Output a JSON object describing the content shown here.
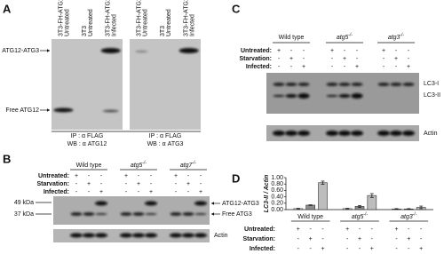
{
  "panel_labels": [
    "A",
    "B",
    "C",
    "D"
  ],
  "a": {
    "band_labels": [
      "ATG12-ATG3",
      "Free ATG12"
    ],
    "blots": [
      {
        "lanes": [
          [
            "3T3-FH-ATG12",
            "Untreated"
          ],
          [
            "3T3",
            "Untreated"
          ],
          [
            "3T3-FH-ATG12",
            "Infected"
          ]
        ],
        "ip": "IP : α FLAG",
        "wb": "WB : α ATG12"
      },
      {
        "lanes": [
          [
            "3T3-FH-ATG12",
            "Untreated"
          ],
          [
            "3T3",
            "Untreated"
          ],
          [
            "3T3-FH-ATG12",
            "Infected"
          ]
        ],
        "ip": "IP : α FLAG",
        "wb": "WB : α ATG3"
      }
    ]
  },
  "b": {
    "genotypes": [
      {
        "name": "Wild type"
      },
      {
        "name": "atg5",
        "sup": "-/-"
      },
      {
        "name": "atg7",
        "sup": "-/-"
      }
    ],
    "conditions": [
      {
        "label": "Untreated:",
        "marks": [
          "+",
          "-",
          "-",
          "+",
          "-",
          "-",
          "+",
          "-",
          "-"
        ]
      },
      {
        "label": "Starvation:",
        "marks": [
          "-",
          "+",
          "-",
          "-",
          "+",
          "-",
          "-",
          "+",
          "-"
        ]
      },
      {
        "label": "Infected:",
        "marks": [
          "-",
          "-",
          "+",
          "-",
          "-",
          "+",
          "-",
          "-",
          "+"
        ]
      }
    ],
    "markers": [
      "49 kDa",
      "37 kDa"
    ],
    "bands": [
      "ATG12-ATG3",
      "Free ATG3"
    ],
    "loading": "Actin"
  },
  "c": {
    "genotypes": [
      {
        "name": "Wild type"
      },
      {
        "name": "atg5",
        "sup": "-/-"
      },
      {
        "name": "atg3",
        "sup": "-/-"
      }
    ],
    "conditions": [
      {
        "label": "Untreated:",
        "marks": [
          "+",
          "-",
          "-",
          "+",
          "-",
          "-",
          "+",
          "-",
          "-"
        ]
      },
      {
        "label": "Starvation:",
        "marks": [
          "-",
          "+",
          "-",
          "-",
          "+",
          "-",
          "-",
          "+",
          "-"
        ]
      },
      {
        "label": "Infected:",
        "marks": [
          "-",
          "-",
          "+",
          "-",
          "-",
          "+",
          "-",
          "-",
          "+"
        ]
      }
    ],
    "bands": [
      "LC3-I",
      "LC3-II"
    ],
    "loading": "Actin"
  },
  "chart_data": {
    "type": "bar",
    "ylabel": "LC3-II / Actin",
    "groups": [
      {
        "name": "Wild type"
      },
      {
        "name": "atg5",
        "sup": "-/-"
      },
      {
        "name": "atg3",
        "sup": "-/-"
      }
    ],
    "conditions": [
      {
        "label": "Untreated:",
        "marks": [
          "+",
          "-",
          "-",
          "+",
          "-",
          "-",
          "+",
          "-",
          "-"
        ]
      },
      {
        "label": "Starvation:",
        "marks": [
          "-",
          "+",
          "-",
          "-",
          "+",
          "-",
          "-",
          "+",
          "-"
        ]
      },
      {
        "label": "Infected:",
        "marks": [
          "-",
          "-",
          "+",
          "-",
          "-",
          "+",
          "-",
          "-",
          "+"
        ]
      }
    ],
    "values": [
      0.03,
      0.14,
      0.84,
      0.03,
      0.1,
      0.44,
      0.02,
      0.02,
      0.07
    ],
    "errors": [
      0.01,
      0.01,
      0.05,
      0.01,
      0.03,
      0.06,
      0.01,
      0.01,
      0.04
    ],
    "colors": [
      "#f2f2f2",
      "#8c8c8c",
      "#bdbdbd",
      "#f2f2f2",
      "#8c8c8c",
      "#bdbdbd",
      "#f2f2f2",
      "#8c8c8c",
      "#bdbdbd"
    ],
    "ylim": [
      0,
      1
    ],
    "yticks": [
      {
        "value": 0,
        "label": "0.00"
      },
      {
        "value": 0.2,
        "label": "0.20"
      },
      {
        "value": 0.4,
        "label": "0.40"
      },
      {
        "value": 0.6,
        "label": "0.60"
      },
      {
        "value": 0.8,
        "label": "0.80"
      },
      {
        "value": 1,
        "label": "1.00"
      }
    ]
  }
}
